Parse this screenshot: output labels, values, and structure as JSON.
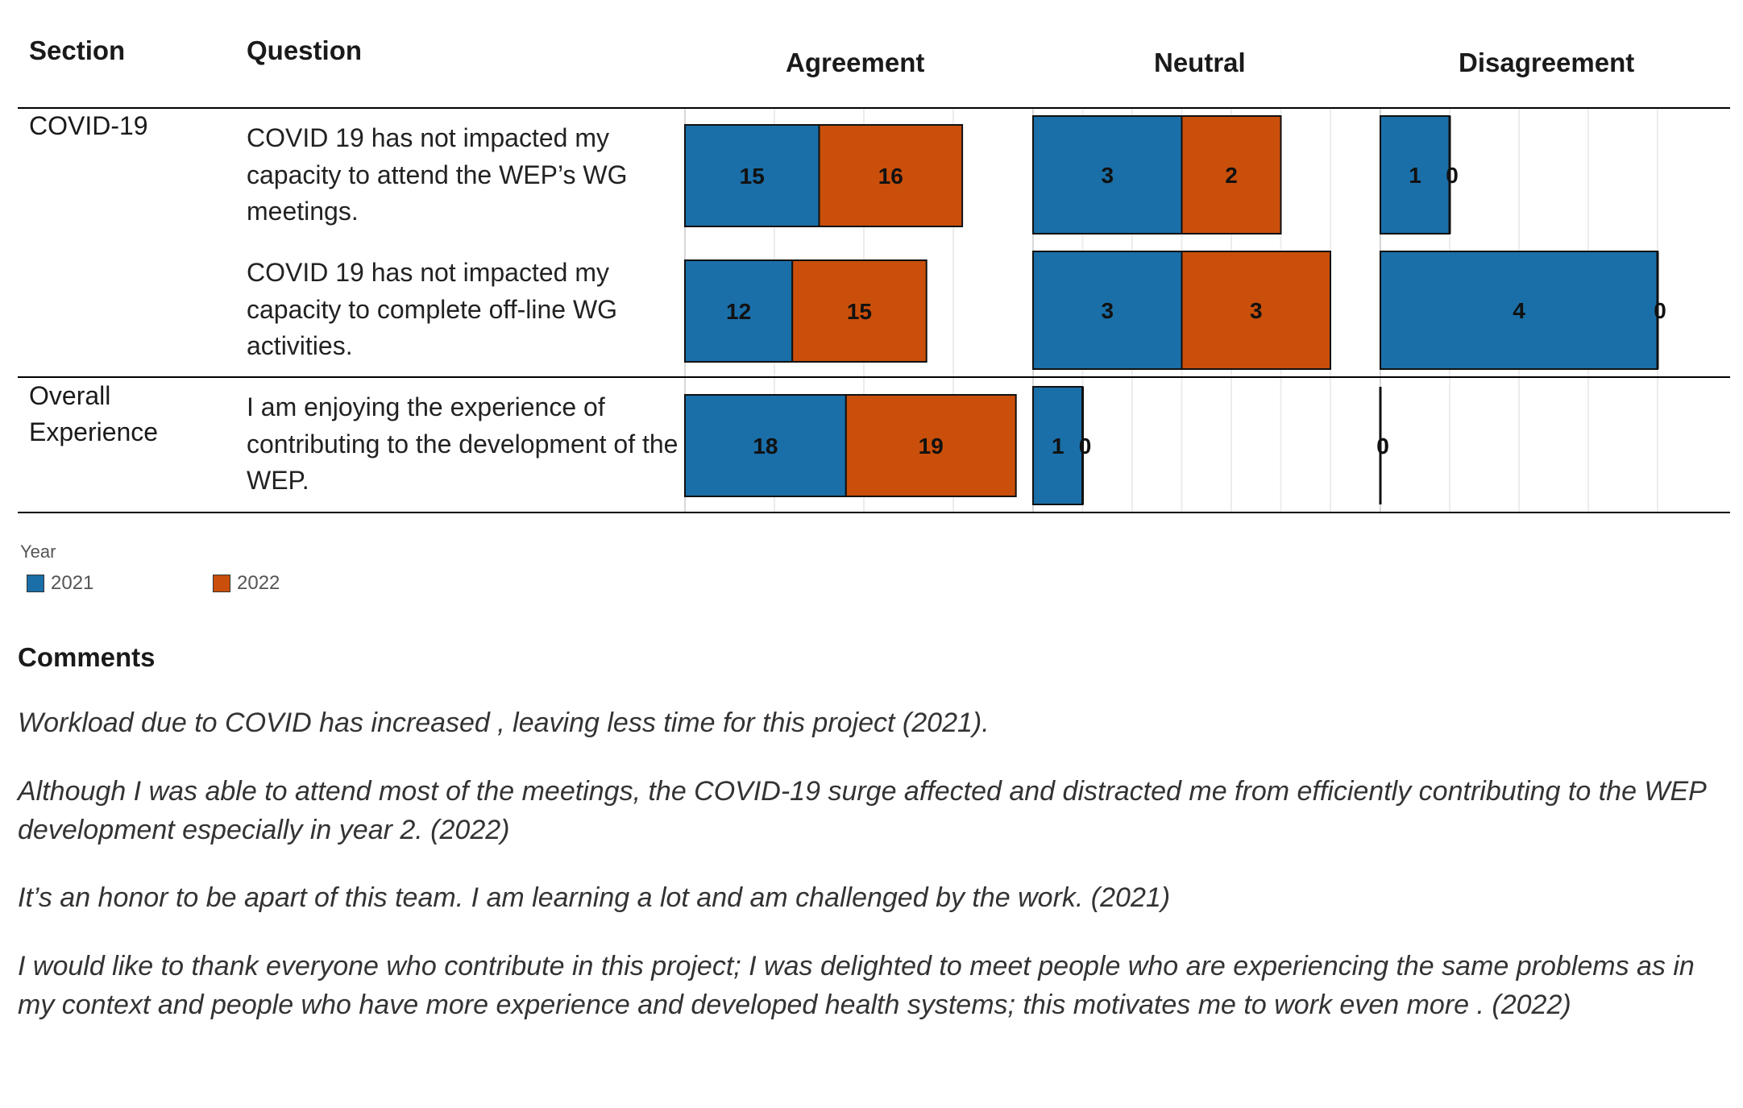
{
  "headers": {
    "section": "Section",
    "question": "Question",
    "agreement": "Agreement",
    "neutral": "Neutral",
    "disagreement": "Disagreement"
  },
  "rows": [
    {
      "section": "COVID-19",
      "question": "COVID 19 has not impacted my capacity to attend the WEP’s WG meetings."
    },
    {
      "section": "",
      "question": "COVID 19 has not impacted my capacity to complete off-line WG activities."
    },
    {
      "section": "Overall Experience",
      "question": " I am enjoying the experience of contributing to the development of the WEP."
    }
  ],
  "legend": {
    "title": "Year",
    "items": [
      {
        "label": "2021",
        "color": "#1a6fa8"
      },
      {
        "label": "2022",
        "color": "#c94f0b"
      }
    ]
  },
  "chart_data": {
    "type": "bar",
    "orientation": "horizontal-stacked",
    "panels": [
      "Agreement",
      "Neutral",
      "Disagreement"
    ],
    "categories": [
      "COVID 19 has not impacted my capacity to attend the WEP’s WG meetings.",
      "COVID 19 has not impacted my capacity to complete off-line WG activities.",
      " I am enjoying the experience of contributing to the development of the WEP."
    ],
    "series": [
      {
        "name": "2021",
        "color": "#1a6fa8",
        "values": {
          "Agreement": [
            15,
            12,
            18
          ],
          "Neutral": [
            3,
            3,
            1
          ],
          "Disagreement": [
            1,
            4,
            0
          ]
        }
      },
      {
        "name": "2022",
        "color": "#c94f0b",
        "values": {
          "Agreement": [
            16,
            15,
            19
          ],
          "Neutral": [
            2,
            3,
            0
          ],
          "Disagreement": [
            0,
            0,
            0
          ]
        }
      }
    ],
    "panel_xlim": {
      "Agreement": [
        0,
        40
      ],
      "Neutral": [
        0,
        7
      ],
      "Disagreement": [
        0,
        5
      ]
    },
    "grid": true,
    "legend_position": "bottom-left"
  },
  "comments": {
    "title": "Comments",
    "items": [
      "Workload due to COVID has increased , leaving less time for this project (2021).",
      "Although I was able to attend most of the meetings, the COVID-19 surge affected and distracted me from efficiently contributing to the WEP development especially in year 2. (2022)",
      "It’s an honor to be apart of this team. I am learning a lot and am challenged by the work. (2021)",
      "I would like to thank everyone who contribute in this project; I was delighted to meet people who are experiencing the same problems as in my context and people who have more  experience and developed health systems; this motivates me to work even more . (2022)"
    ]
  }
}
